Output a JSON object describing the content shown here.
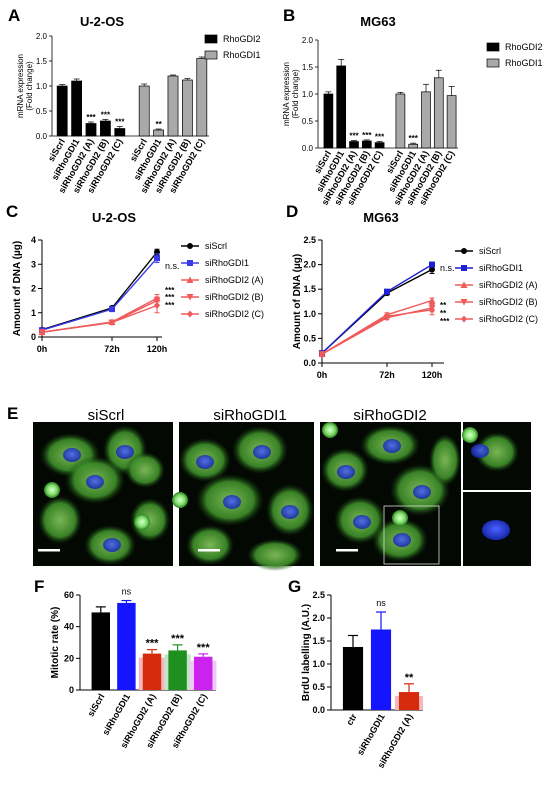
{
  "panels": {
    "A": {
      "label": "A",
      "title": "U-2-OS"
    },
    "B": {
      "label": "B",
      "title": "MG63"
    },
    "C": {
      "label": "C",
      "title": "U-2-OS"
    },
    "D": {
      "label": "D",
      "title": "MG63"
    },
    "E": {
      "label": "E",
      "subtitles": [
        "siScrl",
        "siRhoGDI1",
        "siRhoGDI2"
      ]
    },
    "F": {
      "label": "F"
    },
    "G": {
      "label": "G"
    }
  },
  "chart_data": [
    {
      "id": "A",
      "type": "bar",
      "title": "U-2-OS",
      "ylabel": "mRNA expression\n(Fold change)",
      "ylim": [
        0,
        2.0
      ],
      "yticks": [
        0.0,
        0.5,
        1.0,
        1.5,
        2.0
      ],
      "legend": {
        "placement": "right",
        "entries": [
          "RhoGDI2",
          "RhoGDI1"
        ]
      },
      "categories": [
        "siScrl",
        "siRhoGDI1",
        "siRhoGDI2 (A)",
        "siRhoGDI2 (B)",
        "siRhoGDI2 (C)"
      ],
      "series": [
        {
          "name": "RhoGDI2",
          "color": "#000000",
          "values": [
            1.0,
            1.1,
            0.25,
            0.3,
            0.15
          ],
          "errors": [
            0.03,
            0.04,
            0.03,
            0.03,
            0.04
          ],
          "significance": [
            "",
            "",
            "***",
            "***",
            "***"
          ]
        },
        {
          "name": "RhoGDI1",
          "color": "#a9a9a9",
          "values": [
            1.0,
            0.12,
            1.2,
            1.12,
            1.55
          ],
          "errors": [
            0.04,
            0.02,
            0.02,
            0.03,
            0.03
          ],
          "significance": [
            "",
            "**",
            "",
            "",
            ""
          ]
        }
      ]
    },
    {
      "id": "B",
      "type": "bar",
      "title": "MG63",
      "ylabel": "mRNA expression\n(Fold change)",
      "ylim": [
        0,
        2.0
      ],
      "yticks": [
        0.0,
        0.5,
        1.0,
        1.5,
        2.0
      ],
      "legend": {
        "placement": "right",
        "entries": [
          "RhoGDI2",
          "RhoGDI1"
        ]
      },
      "categories": [
        "siScrl",
        "siRhoGDI1",
        "siRhoGDI2 (A)",
        "siRhoGDI2 (B)",
        "siRhoGDI2 (C)"
      ],
      "series": [
        {
          "name": "RhoGDI2",
          "color": "#000000",
          "values": [
            1.0,
            1.52,
            0.12,
            0.13,
            0.1
          ],
          "errors": [
            0.04,
            0.12,
            0.02,
            0.02,
            0.02
          ],
          "significance": [
            "",
            "",
            "***",
            "***",
            "***"
          ]
        },
        {
          "name": "RhoGDI1",
          "color": "#a9a9a9",
          "values": [
            1.0,
            0.07,
            1.04,
            1.3,
            0.97
          ],
          "errors": [
            0.03,
            0.02,
            0.14,
            0.14,
            0.17
          ],
          "significance": [
            "",
            "***",
            "",
            "",
            ""
          ]
        }
      ]
    },
    {
      "id": "C",
      "type": "line",
      "title": "U-2-OS",
      "ylabel": "Amount of DNA (µg)",
      "ylim": [
        0,
        4
      ],
      "yticks": [
        0,
        1,
        2,
        3,
        4
      ],
      "x": [
        "0h",
        "72h",
        "120h"
      ],
      "legend": {
        "placement": "right"
      },
      "series": [
        {
          "name": "siScrl",
          "color": "#000000",
          "marker": "circle",
          "values": [
            0.3,
            1.2,
            3.5
          ],
          "errors": [
            0.02,
            0.05,
            0.12
          ],
          "significance": ""
        },
        {
          "name": "siRhoGDI1",
          "color": "#3a3aea",
          "marker": "square",
          "values": [
            0.28,
            1.15,
            3.25
          ],
          "errors": [
            0.02,
            0.05,
            0.18
          ],
          "significance": "n.s."
        },
        {
          "name": "siRhoGDI2 (A)",
          "color": "#f05a5a",
          "marker": "triangle-up",
          "values": [
            0.2,
            0.62,
            1.6
          ],
          "errors": [
            0.02,
            0.04,
            0.15
          ],
          "significance": "***"
        },
        {
          "name": "siRhoGDI2 (B)",
          "color": "#f05a5a",
          "marker": "triangle-down",
          "values": [
            0.2,
            0.6,
            1.5
          ],
          "errors": [
            0.02,
            0.04,
            0.15
          ],
          "significance": "***"
        },
        {
          "name": "siRhoGDI2 (C)",
          "color": "#f05a5a",
          "marker": "diamond",
          "values": [
            0.2,
            0.6,
            1.3
          ],
          "errors": [
            0.02,
            0.04,
            0.3
          ],
          "significance": "***"
        }
      ]
    },
    {
      "id": "D",
      "type": "line",
      "title": "MG63",
      "ylabel": "Amount of DNA (µg)",
      "ylim": [
        0,
        2.5
      ],
      "yticks": [
        0.0,
        0.5,
        1.0,
        1.5,
        2.0,
        2.5
      ],
      "x": [
        "0h",
        "72h",
        "120h"
      ],
      "legend": {
        "placement": "right"
      },
      "series": [
        {
          "name": "siScrl",
          "color": "#000000",
          "marker": "circle",
          "values": [
            0.2,
            1.42,
            1.9
          ],
          "errors": [
            0.02,
            0.04,
            0.08
          ],
          "significance": ""
        },
        {
          "name": "siRhoGDI1",
          "color": "#1f1fd6",
          "marker": "square",
          "values": [
            0.2,
            1.45,
            2.0
          ],
          "errors": [
            0.02,
            0.04,
            0.05
          ],
          "significance": "n.s."
        },
        {
          "name": "siRhoGDI2 (A)",
          "color": "#f05a5a",
          "marker": "triangle-up",
          "values": [
            0.18,
            0.98,
            1.27
          ],
          "errors": [
            0.02,
            0.04,
            0.05
          ],
          "significance": "**"
        },
        {
          "name": "siRhoGDI2 (B)",
          "color": "#f05a5a",
          "marker": "triangle-down",
          "values": [
            0.18,
            0.92,
            1.12
          ],
          "errors": [
            0.02,
            0.04,
            0.08
          ],
          "significance": "**"
        },
        {
          "name": "siRhoGDI2 (C)",
          "color": "#f05a5a",
          "marker": "diamond",
          "values": [
            0.18,
            0.95,
            1.08
          ],
          "errors": [
            0.02,
            0.04,
            0.1
          ],
          "significance": "***"
        }
      ]
    },
    {
      "id": "F",
      "type": "bar",
      "ylabel": "Mitotic rate (%)",
      "ylim": [
        0,
        60
      ],
      "yticks": [
        0,
        20,
        40,
        60
      ],
      "categories": [
        "siScrl",
        "siRhoGDI1",
        "siRhoGDI2 (A)",
        "siRhoGDI2 (B)",
        "siRhoGDI2 (C)"
      ],
      "values": [
        49,
        55,
        23,
        25,
        21
      ],
      "errors": [
        3.5,
        1.5,
        2.5,
        3.5,
        1.8
      ],
      "colors": [
        "#000000",
        "#1414ff",
        "#d62a0c",
        "#1f8f1f",
        "#cc22ee"
      ],
      "shadows": [
        "",
        "",
        "#f3b8bc",
        "#c7e3c7",
        "#f0c8f5"
      ],
      "significance": [
        "",
        "ns",
        "***",
        "***",
        "***"
      ]
    },
    {
      "id": "G",
      "type": "bar",
      "ylabel": "BrdU labelling (A.U.)",
      "ylim": [
        0,
        2.5
      ],
      "yticks": [
        0.0,
        0.5,
        1.0,
        1.5,
        2.0,
        2.5
      ],
      "categories": [
        "ctr",
        "siRhoGDI1",
        "siRhoGDI2 (A)"
      ],
      "values": [
        1.37,
        1.75,
        0.39
      ],
      "errors": [
        0.25,
        0.38,
        0.18
      ],
      "colors": [
        "#000000",
        "#1414ff",
        "#d62a0c"
      ],
      "shadows": [
        "",
        "",
        "#f3b8bc"
      ],
      "significance": [
        "",
        "ns",
        "**"
      ]
    }
  ]
}
